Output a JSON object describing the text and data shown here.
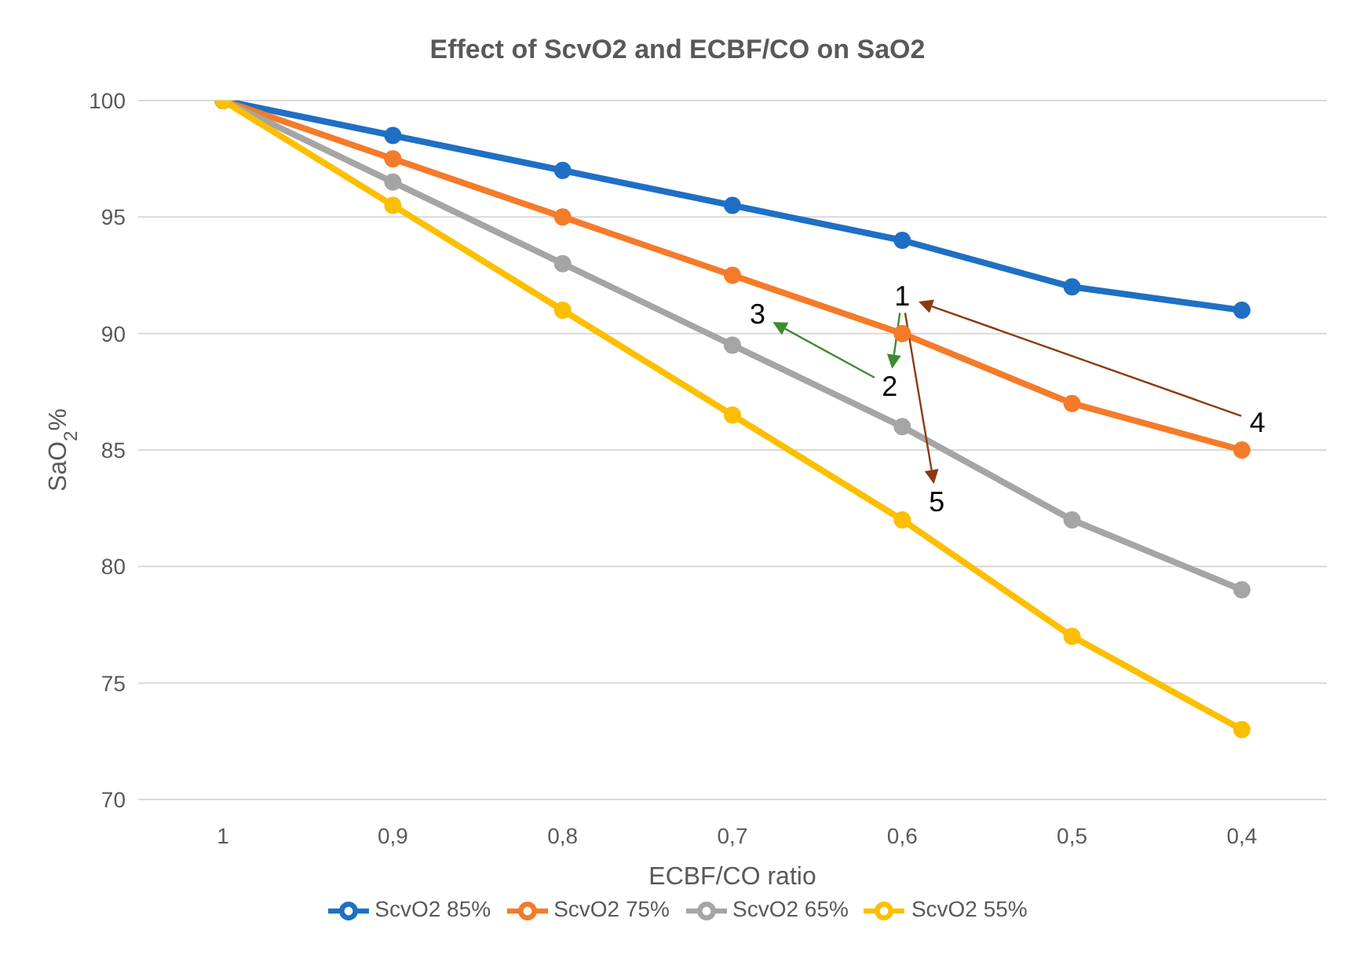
{
  "chart_data": {
    "type": "line",
    "title": "Effect of ScvO2 and ECBF/CO on SaO2",
    "xlabel": "ECBF/CO ratio",
    "ylabel": "SaO$_{2}$%",
    "categories": [
      "1",
      "0,9",
      "0,8",
      "0,7",
      "0,6",
      "0,5",
      "0,4"
    ],
    "series": [
      {
        "name": "ScvO2 85%",
        "color": "#1f6fc5",
        "values": [
          100,
          98.5,
          97,
          95.5,
          94,
          92,
          91
        ]
      },
      {
        "name": "ScvO2 75%",
        "color": "#f47b2a",
        "values": [
          100,
          97.5,
          95,
          92.5,
          90,
          87,
          85
        ]
      },
      {
        "name": "ScvO2 65%",
        "color": "#a5a5a5",
        "values": [
          100,
          96.5,
          93,
          89.5,
          86,
          82,
          79
        ]
      },
      {
        "name": "ScvO2 55%",
        "color": "#fcbf00",
        "values": [
          100,
          95.5,
          91,
          86.5,
          82,
          77,
          73
        ]
      }
    ],
    "annotations": [
      {
        "text": "1",
        "x": "0,6",
        "y": 90
      },
      {
        "text": "2",
        "x": "0,6",
        "y": 86
      },
      {
        "text": "3",
        "x": "0,7",
        "y": 89.5
      },
      {
        "text": "4",
        "x": "0,4",
        "y": 85
      },
      {
        "text": "5",
        "x": "0,6",
        "y": 82
      }
    ],
    "ylim": [
      70,
      100
    ],
    "yticks": [
      70,
      75,
      80,
      85,
      90,
      95,
      100
    ],
    "grid": "y",
    "legend": "bottom",
    "marker": "circle",
    "line_style": "solid"
  }
}
